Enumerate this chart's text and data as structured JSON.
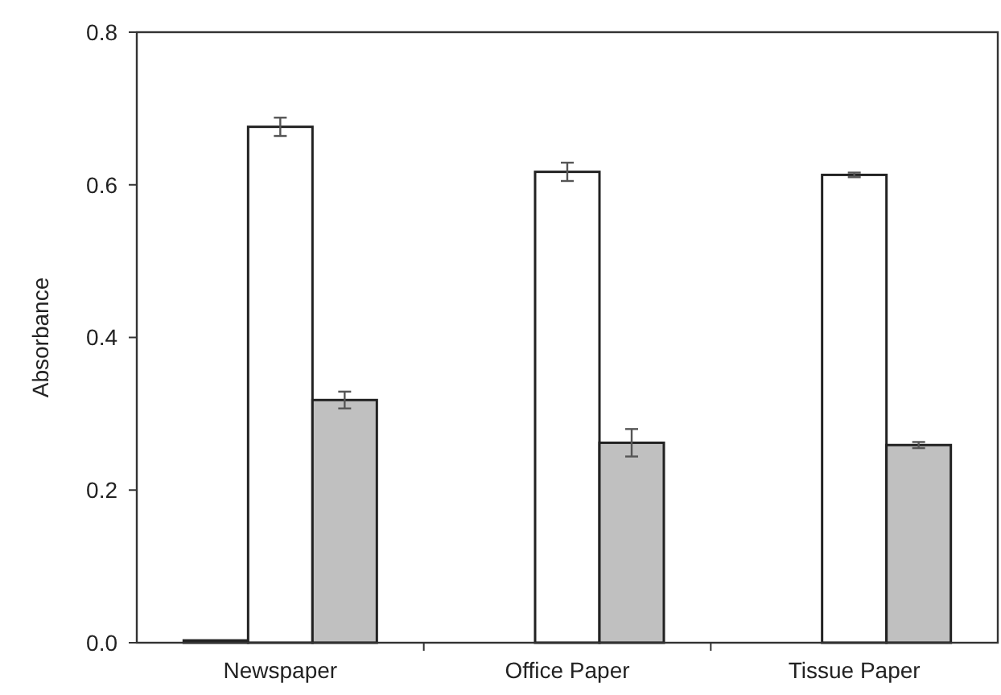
{
  "chart_data": {
    "type": "bar",
    "ylabel": "Absorbance",
    "categories": [
      "Newspaper",
      "Office Paper",
      "Tissue Paper"
    ],
    "series": [
      {
        "color": "#000000",
        "values": [
          0.003,
          0,
          0
        ]
      },
      {
        "color": "#ffffff",
        "values": [
          0.676,
          0.617,
          0.613
        ],
        "errors": [
          0.012,
          0.012,
          0.003
        ]
      },
      {
        "color": "#c0c0c0",
        "values": [
          0.318,
          0.262,
          0.259
        ],
        "errors": [
          0.011,
          0.018,
          0.004
        ]
      }
    ],
    "ylim": [
      0,
      0.8
    ],
    "yticks": [
      {
        "value": 0,
        "label": "0.0"
      },
      {
        "value": 0.2,
        "label": "0.2"
      },
      {
        "value": 0.4,
        "label": "0.4"
      },
      {
        "value": 0.6,
        "label": "0.6"
      },
      {
        "value": 0.8,
        "label": "0.8"
      }
    ],
    "grid": false
  }
}
